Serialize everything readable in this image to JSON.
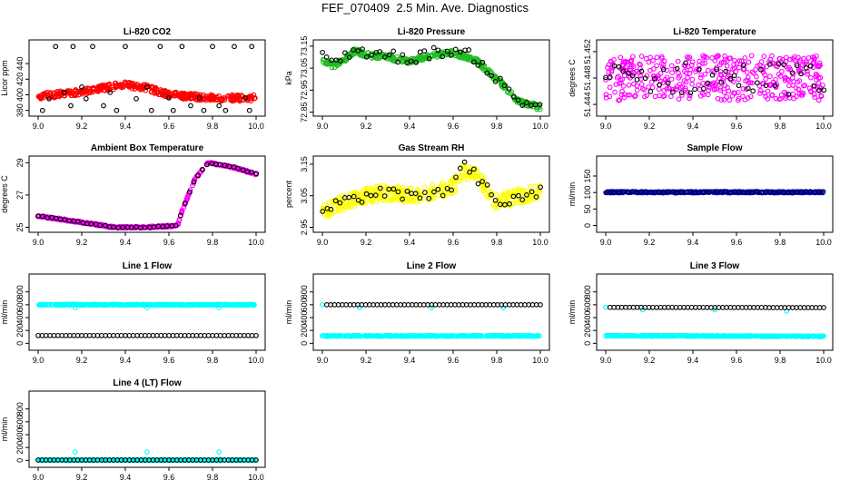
{
  "title": "FEF_070409  2.5 Min. Ave. Diagnostics",
  "chart_data": [
    {
      "type": "scatter",
      "title": "Li-820 CO2",
      "ylabel": "Licor ppm",
      "xlim": [
        9.0,
        10.0
      ],
      "ylim": [
        375,
        468
      ],
      "xticks": [
        "9.0",
        "9.2",
        "9.4",
        "9.6",
        "9.8",
        "10.0"
      ],
      "yticks": [
        380,
        400,
        420,
        440
      ],
      "colors": {
        "primary": "#ff0000",
        "secondary": "#000000"
      },
      "series": [
        {
          "role": "primary",
          "density": "dense",
          "x_range": [
            9.0,
            10.0
          ],
          "y_profile": [
            [
              9.0,
              398
            ],
            [
              9.2,
              404
            ],
            [
              9.3,
              409
            ],
            [
              9.4,
              413
            ],
            [
              9.5,
              409
            ],
            [
              9.6,
              400
            ],
            [
              9.8,
              396
            ],
            [
              10.0,
              396
            ]
          ],
          "spread": 4
        },
        {
          "role": "secondary",
          "points": [
            [
              9.02,
              380
            ],
            [
              9.05,
              395
            ],
            [
              9.08,
              462
            ],
            [
              9.12,
              403
            ],
            [
              9.15,
              386
            ],
            [
              9.16,
              462
            ],
            [
              9.2,
              410
            ],
            [
              9.22,
              395
            ],
            [
              9.25,
              462
            ],
            [
              9.3,
              386
            ],
            [
              9.33,
              403
            ],
            [
              9.36,
              380
            ],
            [
              9.4,
              462
            ],
            [
              9.45,
              395
            ],
            [
              9.5,
              410
            ],
            [
              9.52,
              380
            ],
            [
              9.56,
              462
            ],
            [
              9.6,
              396
            ],
            [
              9.62,
              380
            ],
            [
              9.66,
              462
            ],
            [
              9.7,
              386
            ],
            [
              9.74,
              396
            ],
            [
              9.76,
              380
            ],
            [
              9.8,
              462
            ],
            [
              9.83,
              386
            ],
            [
              9.86,
              380
            ],
            [
              9.9,
              462
            ],
            [
              9.95,
              396
            ],
            [
              9.97,
              380
            ],
            [
              9.98,
              462
            ]
          ]
        }
      ]
    },
    {
      "type": "scatter",
      "title": "Li-820 Pressure",
      "ylabel": "kPa",
      "xlim": [
        9.0,
        10.0
      ],
      "ylim": [
        72.84,
        73.17
      ],
      "xticks": [
        "9.0",
        "9.2",
        "9.4",
        "9.6",
        "9.8",
        "10.0"
      ],
      "yticks": [
        "72.85",
        "72.95",
        "73.05",
        "73.15"
      ],
      "colors": {
        "primary": "#22bb22",
        "secondary": "#000000"
      },
      "series": [
        {
          "role": "primary",
          "density": "dense",
          "x_range": [
            9.0,
            10.0
          ],
          "y_profile": [
            [
              9.0,
              73.09
            ],
            [
              9.05,
              73.06
            ],
            [
              9.1,
              73.09
            ],
            [
              9.15,
              73.13
            ],
            [
              9.2,
              73.11
            ],
            [
              9.3,
              73.1
            ],
            [
              9.4,
              73.08
            ],
            [
              9.5,
              73.11
            ],
            [
              9.6,
              73.12
            ],
            [
              9.7,
              73.09
            ],
            [
              9.8,
              73.0
            ],
            [
              9.9,
              72.9
            ],
            [
              10.0,
              72.87
            ]
          ],
          "spread": 0.012
        },
        {
          "role": "secondary",
          "density": "sparse",
          "x_range": [
            9.0,
            10.0
          ],
          "y_profile": [
            [
              9.0,
              73.1
            ],
            [
              9.05,
              73.08
            ],
            [
              9.1,
              73.1
            ],
            [
              9.15,
              73.14
            ],
            [
              9.2,
              73.12
            ],
            [
              9.3,
              73.11
            ],
            [
              9.4,
              73.09
            ],
            [
              9.5,
              73.12
            ],
            [
              9.6,
              73.13
            ],
            [
              9.7,
              73.1
            ],
            [
              9.8,
              73.0
            ],
            [
              9.9,
              72.9
            ],
            [
              10.0,
              72.88
            ]
          ],
          "spread": 0.025
        }
      ]
    },
    {
      "type": "scatter",
      "title": "Li-820 Temperature",
      "ylabel": "degrees C",
      "xlim": [
        9.0,
        10.0
      ],
      "ylim": [
        51.4425,
        51.4535
      ],
      "xticks": [
        "9.0",
        "9.2",
        "9.4",
        "9.6",
        "9.8",
        "10.0"
      ],
      "yticks": [
        "51.444",
        "51.448",
        "51.452"
      ],
      "colors": {
        "primary": "#ff00ff",
        "secondary": "#000000"
      },
      "series": [
        {
          "role": "primary",
          "density": "dense",
          "x_range": [
            9.0,
            10.0
          ],
          "y_profile": [
            [
              9.0,
              51.448
            ],
            [
              10.0,
              51.448
            ]
          ],
          "spread": 0.0034
        },
        {
          "role": "secondary",
          "density": "sparse",
          "x_range": [
            9.0,
            10.0
          ],
          "y_profile": [
            [
              9.0,
              51.448
            ],
            [
              10.0,
              51.448
            ]
          ],
          "spread": 0.0025
        }
      ]
    },
    {
      "type": "scatter",
      "title": "Ambient Box Temperature",
      "ylabel": "degrees C",
      "xlim": [
        9.0,
        10.0
      ],
      "ylim": [
        24.8,
        29.3
      ],
      "xticks": [
        "9.0",
        "9.2",
        "9.4",
        "9.6",
        "9.8",
        "10.0"
      ],
      "yticks": [
        25,
        27,
        29
      ],
      "colors": {
        "primary": "#ff00ff",
        "secondary": "#000000"
      },
      "series": [
        {
          "role": "primary",
          "density": "dense",
          "x_range": [
            9.0,
            10.0
          ],
          "y_profile": [
            [
              9.0,
              25.7
            ],
            [
              9.2,
              25.3
            ],
            [
              9.35,
              25.0
            ],
            [
              9.5,
              25.0
            ],
            [
              9.64,
              25.1
            ],
            [
              9.66,
              26.0
            ],
            [
              9.72,
              28.0
            ],
            [
              9.78,
              29.0
            ],
            [
              9.9,
              28.7
            ],
            [
              10.0,
              28.3
            ]
          ],
          "spread": 0.05
        },
        {
          "role": "secondary",
          "density": "sparse",
          "x_range": [
            9.0,
            10.0
          ],
          "y_profile": [
            [
              9.0,
              25.7
            ],
            [
              9.2,
              25.3
            ],
            [
              9.35,
              25.0
            ],
            [
              9.5,
              25.0
            ],
            [
              9.64,
              25.1
            ],
            [
              9.66,
              26.0
            ],
            [
              9.72,
              28.0
            ],
            [
              9.78,
              29.0
            ],
            [
              9.9,
              28.7
            ],
            [
              10.0,
              28.3
            ]
          ],
          "spread": 0.03
        }
      ]
    },
    {
      "type": "scatter",
      "title": "Gas Stream RH",
      "ylabel": "percent",
      "xlim": [
        9.0,
        10.0
      ],
      "ylim": [
        2.94,
        3.17
      ],
      "xticks": [
        "9.0",
        "9.2",
        "9.4",
        "9.6",
        "9.8",
        "10.0"
      ],
      "yticks": [
        "2.95",
        "3.05",
        "3.15"
      ],
      "colors": {
        "primary": "#ffff00",
        "secondary": "#000000"
      },
      "series": [
        {
          "role": "primary",
          "density": "dense",
          "x_range": [
            9.0,
            10.0
          ],
          "y_profile": [
            [
              9.0,
              3.0
            ],
            [
              9.1,
              3.03
            ],
            [
              9.2,
              3.05
            ],
            [
              9.3,
              3.06
            ],
            [
              9.4,
              3.05
            ],
            [
              9.5,
              3.06
            ],
            [
              9.6,
              3.08
            ],
            [
              9.65,
              3.13
            ],
            [
              9.7,
              3.12
            ],
            [
              9.75,
              3.07
            ],
            [
              9.8,
              3.03
            ],
            [
              9.9,
              3.05
            ],
            [
              10.0,
              3.06
            ]
          ],
          "spread": 0.025
        },
        {
          "role": "secondary",
          "density": "sparse",
          "x_range": [
            9.0,
            10.0
          ],
          "y_profile": [
            [
              9.0,
              3.0
            ],
            [
              9.1,
              3.03
            ],
            [
              9.2,
              3.05
            ],
            [
              9.3,
              3.06
            ],
            [
              9.4,
              3.05
            ],
            [
              9.5,
              3.06
            ],
            [
              9.6,
              3.08
            ],
            [
              9.65,
              3.14
            ],
            [
              9.7,
              3.12
            ],
            [
              9.75,
              3.07
            ],
            [
              9.8,
              3.03
            ],
            [
              9.9,
              3.05
            ],
            [
              10.0,
              3.06
            ]
          ],
          "spread": 0.02
        }
      ]
    },
    {
      "type": "scatter",
      "title": "Sample Flow",
      "ylabel": "ml/min",
      "xlim": [
        9.0,
        10.0
      ],
      "ylim": [
        -15,
        205
      ],
      "xticks": [
        "9.0",
        "9.2",
        "9.4",
        "9.6",
        "9.8",
        "10.0"
      ],
      "yticks": [
        0,
        50,
        100,
        150
      ],
      "colors": {
        "primary": "#0000ff",
        "secondary": "#000000"
      },
      "series": [
        {
          "role": "primary",
          "density": "dense",
          "x_range": [
            9.0,
            10.0
          ],
          "y_profile": [
            [
              9.0,
              101
            ],
            [
              10.0,
              101
            ]
          ],
          "spread": 2
        },
        {
          "role": "secondary",
          "density": "sparse",
          "x_range": [
            9.0,
            10.0
          ],
          "y_profile": [
            [
              9.0,
              101
            ],
            [
              10.0,
              101
            ]
          ],
          "spread": 2
        }
      ]
    },
    {
      "type": "scatter",
      "title": "Line 1 Flow",
      "ylabel": "ml/min",
      "xlim": [
        9.0,
        10.0
      ],
      "ylim": [
        -80,
        1050
      ],
      "xticks": [
        "9.0",
        "9.2",
        "9.4",
        "9.6",
        "9.8",
        "10.0"
      ],
      "yticks": [
        0,
        200,
        400,
        600,
        800
      ],
      "colors": {
        "primary": "#00ffff",
        "secondary": "#000000"
      },
      "series": [
        {
          "role": "primary",
          "density": "dense",
          "x_range": [
            9.0,
            10.0
          ],
          "y_profile": [
            [
              9.0,
              600
            ],
            [
              10.0,
              600
            ]
          ],
          "spread": 6,
          "outliers": [
            [
              9.17,
              555
            ],
            [
              9.5,
              555
            ],
            [
              9.83,
              555
            ]
          ]
        },
        {
          "role": "secondary",
          "density": "row",
          "x_range": [
            9.0,
            10.0
          ],
          "y_profile": [
            [
              9.0,
              120
            ],
            [
              10.0,
              120
            ]
          ],
          "spread": 0
        }
      ]
    },
    {
      "type": "scatter",
      "title": "Line 2 Flow",
      "ylabel": "ml/min",
      "xlim": [
        9.0,
        10.0
      ],
      "ylim": [
        -80,
        1050
      ],
      "xticks": [
        "9.0",
        "9.2",
        "9.4",
        "9.6",
        "9.8",
        "10.0"
      ],
      "yticks": [
        0,
        200,
        400,
        600,
        800
      ],
      "colors": {
        "primary": "#00ffff",
        "secondary": "#000000"
      },
      "series": [
        {
          "role": "primary",
          "density": "dense",
          "x_range": [
            9.0,
            10.0
          ],
          "y_profile": [
            [
              9.0,
              115
            ],
            [
              10.0,
              115
            ]
          ],
          "spread": 6,
          "outliers": [
            [
              9.0,
              600
            ],
            [
              9.17,
              555
            ],
            [
              9.5,
              555
            ],
            [
              9.83,
              555
            ]
          ]
        },
        {
          "role": "secondary",
          "density": "row",
          "x_range": [
            9.02,
            10.0
          ],
          "y_profile": [
            [
              9.0,
              600
            ],
            [
              10.0,
              600
            ]
          ],
          "spread": 0
        }
      ]
    },
    {
      "type": "scatter",
      "title": "Line 3 Flow",
      "ylabel": "ml/min",
      "xlim": [
        9.0,
        10.0
      ],
      "ylim": [
        -80,
        1050
      ],
      "xticks": [
        "9.0",
        "9.2",
        "9.4",
        "9.6",
        "9.8",
        "10.0"
      ],
      "yticks": [
        0,
        200,
        400,
        600,
        800
      ],
      "colors": {
        "primary": "#00ffff",
        "secondary": "#000000"
      },
      "series": [
        {
          "role": "primary",
          "density": "dense",
          "x_range": [
            9.0,
            10.0
          ],
          "y_profile": [
            [
              9.0,
              118
            ],
            [
              10.0,
              108
            ]
          ],
          "spread": 6,
          "outliers": [
            [
              9.0,
              560
            ],
            [
              9.17,
              520
            ],
            [
              9.5,
              520
            ],
            [
              9.83,
              500
            ]
          ]
        },
        {
          "role": "secondary",
          "density": "row",
          "x_range": [
            9.02,
            10.0
          ],
          "y_profile": [
            [
              9.0,
              560
            ],
            [
              10.0,
              555
            ]
          ],
          "spread": 0
        }
      ]
    },
    {
      "type": "scatter",
      "title": "Line 4 (LT) Flow",
      "ylabel": "ml/min",
      "xlim": [
        9.0,
        10.0
      ],
      "ylim": [
        -80,
        1050
      ],
      "xticks": [
        "9.0",
        "9.2",
        "9.4",
        "9.6",
        "9.8",
        "10.0"
      ],
      "yticks": [
        0,
        200,
        400,
        600,
        800
      ],
      "colors": {
        "primary": "#00ffff",
        "secondary": "#000000"
      },
      "series": [
        {
          "role": "primary",
          "density": "dense",
          "x_range": [
            9.0,
            10.0
          ],
          "y_profile": [
            [
              9.0,
              5
            ],
            [
              10.0,
              5
            ]
          ],
          "spread": 3,
          "outliers": [
            [
              9.17,
              130
            ],
            [
              9.5,
              130
            ],
            [
              9.83,
              130
            ]
          ]
        },
        {
          "role": "secondary",
          "density": "row",
          "x_range": [
            9.0,
            10.0
          ],
          "y_profile": [
            [
              9.0,
              5
            ],
            [
              10.0,
              5
            ]
          ],
          "spread": 0
        }
      ]
    }
  ]
}
